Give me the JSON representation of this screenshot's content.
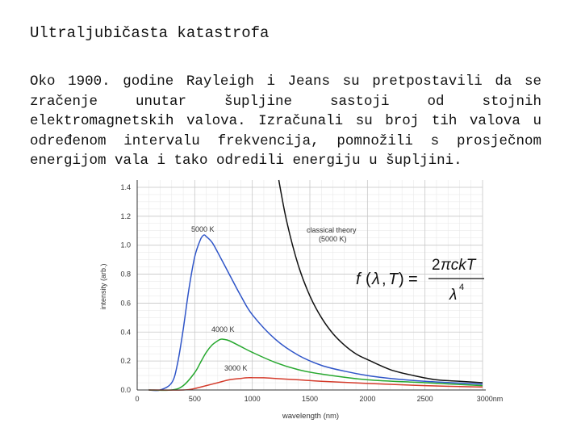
{
  "slide": {
    "title": "Ultraljubičasta katastrofa",
    "paragraph": "Oko 1900. godine Rayleigh i Jeans su pretpostavili da se zračenje unutar šupljine sastoji od stojnih elektromagnetskih valova. Izračunali su broj tih valova u određenom intervalu frekvencija, pomnožili s prosječnom energijom vala i tako odredili energiju u šupljini."
  },
  "chart_data": {
    "type": "line",
    "xlabel": "wavelength (nm)",
    "ylabel": "intensity (arb.)",
    "xlim": [
      0,
      3000
    ],
    "ylim": [
      0,
      1.45
    ],
    "x_ticks": [
      "0",
      "500",
      "1000",
      "1500",
      "2000",
      "2500",
      "3000nm"
    ],
    "y_ticks": [
      "0.0",
      "0.2",
      "0.4",
      "0.6",
      "0.8",
      "1.0",
      "1.2",
      "1.4"
    ],
    "grid": true,
    "formula": "f(λ,T) = 2πckT / λ⁴",
    "series": [
      {
        "name": "5000 K",
        "color": "#2f55c8",
        "x": [
          100,
          200,
          300,
          350,
          400,
          450,
          500,
          550,
          580,
          600,
          650,
          700,
          800,
          900,
          1000,
          1200,
          1400,
          1600,
          1800,
          2000,
          2200,
          2500,
          3000
        ],
        "y": [
          0.0,
          0.0,
          0.05,
          0.18,
          0.42,
          0.7,
          0.92,
          1.04,
          1.07,
          1.06,
          1.02,
          0.95,
          0.8,
          0.65,
          0.52,
          0.35,
          0.24,
          0.17,
          0.13,
          0.1,
          0.08,
          0.06,
          0.04
        ]
      },
      {
        "name": "4000 K",
        "color": "#27a82f",
        "x": [
          100,
          300,
          400,
          500,
          550,
          600,
          650,
          700,
          725,
          750,
          800,
          900,
          1000,
          1200,
          1400,
          1600,
          2000,
          2500,
          3000
        ],
        "y": [
          0.0,
          0.0,
          0.03,
          0.12,
          0.19,
          0.26,
          0.31,
          0.34,
          0.35,
          0.35,
          0.34,
          0.3,
          0.26,
          0.19,
          0.14,
          0.11,
          0.07,
          0.05,
          0.03
        ]
      },
      {
        "name": "3000 K",
        "color": "#d43b2b",
        "x": [
          100,
          400,
          500,
          600,
          700,
          800,
          900,
          966,
          1000,
          1100,
          1200,
          1400,
          1600,
          2000,
          2500,
          3000
        ],
        "y": [
          0.0,
          0.0,
          0.01,
          0.03,
          0.05,
          0.07,
          0.08,
          0.085,
          0.085,
          0.084,
          0.08,
          0.07,
          0.06,
          0.045,
          0.03,
          0.02
        ]
      },
      {
        "name": "classical theory",
        "sublabel": "(5000 K)",
        "color": "#111111",
        "x": [
          1230,
          1300,
          1400,
          1500,
          1600,
          1700,
          1800,
          1900,
          2000,
          2200,
          2400,
          2600,
          2800,
          3000
        ],
        "y": [
          1.45,
          1.16,
          0.86,
          0.65,
          0.5,
          0.39,
          0.31,
          0.25,
          0.21,
          0.14,
          0.1,
          0.07,
          0.06,
          0.05
        ]
      }
    ],
    "labels": {
      "s5000": "5000 K",
      "s4000": "4000 K",
      "s3000": "3000 K",
      "classical": "classical theory",
      "classical_sub": "(5000 K)"
    }
  }
}
